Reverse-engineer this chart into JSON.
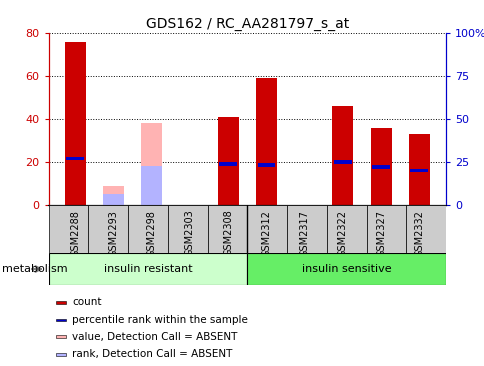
{
  "title": "GDS162 / RC_AA281797_s_at",
  "samples": [
    "GSM2288",
    "GSM2293",
    "GSM2298",
    "GSM2303",
    "GSM2308",
    "GSM2312",
    "GSM2317",
    "GSM2322",
    "GSM2327",
    "GSM2332"
  ],
  "count_values": [
    76,
    0,
    0,
    0,
    41,
    59,
    0,
    46,
    36,
    33
  ],
  "rank_values": [
    27,
    0,
    0,
    0,
    24,
    23,
    0,
    25,
    22,
    20
  ],
  "absent_value_values": [
    0,
    9,
    38,
    0,
    0,
    0,
    0,
    0,
    0,
    0
  ],
  "absent_rank_values": [
    0,
    5,
    18,
    0,
    0,
    0,
    0,
    0,
    0,
    0
  ],
  "group1_label": "insulin resistant",
  "group2_label": "insulin sensitive",
  "group1_count": 5,
  "group2_count": 5,
  "ylim_left": [
    0,
    80
  ],
  "ylim_right": [
    0,
    100
  ],
  "yticks_left": [
    0,
    20,
    40,
    60,
    80
  ],
  "yticks_right": [
    0,
    25,
    50,
    75,
    100
  ],
  "yticklabels_right": [
    "0",
    "25",
    "50",
    "75",
    "100%"
  ],
  "color_count": "#cc0000",
  "color_rank": "#0000cc",
  "color_absent_value": "#ffb3b3",
  "color_absent_rank": "#b3b3ff",
  "color_group1_bg": "#ccffcc",
  "color_group2_bg": "#66ee66",
  "color_xticklabels_bg": "#cccccc",
  "bar_width": 0.55,
  "legend_items": [
    {
      "label": "count",
      "color": "#cc0000"
    },
    {
      "label": "percentile rank within the sample",
      "color": "#0000cc"
    },
    {
      "label": "value, Detection Call = ABSENT",
      "color": "#ffb3b3"
    },
    {
      "label": "rank, Detection Call = ABSENT",
      "color": "#b3b3ff"
    }
  ]
}
